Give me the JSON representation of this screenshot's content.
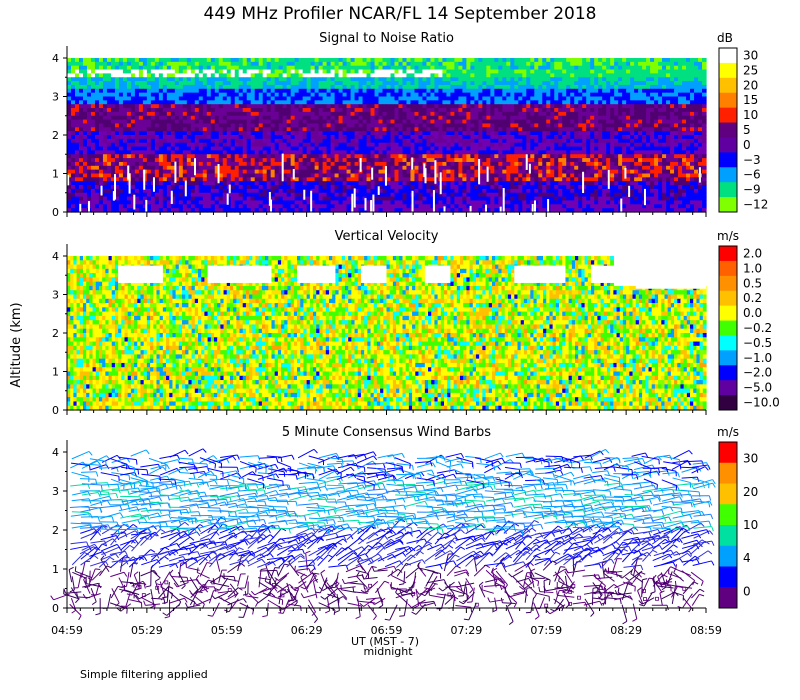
{
  "title": "449 MHz Profiler NCAR/FL 14 September 2018",
  "footnote": "Simple filtering applied",
  "y_axis_label": "Altitude (km)",
  "x_axis": {
    "label": "UT (MST - 7)",
    "sublabel": "midnight",
    "ticks": [
      "04:59",
      "05:29",
      "05:59",
      "06:29",
      "06:59",
      "07:29",
      "07:59",
      "08:29",
      "08:59"
    ]
  },
  "chart_data": [
    {
      "type": "heatmap",
      "title": "Signal to Noise Ratio",
      "ylim": [
        0,
        4
      ],
      "yticks": [
        "0",
        "1",
        "2",
        "3",
        "4"
      ],
      "x_range": [
        "04:59",
        "08:59"
      ],
      "colorbar": {
        "unit": "dB",
        "labels": [
          "30",
          "25",
          "20",
          "15",
          "10",
          "5",
          "0",
          "−3",
          "−6",
          "−9",
          "−12"
        ],
        "colors": [
          "#ffffff",
          "#ffff00",
          "#ffc000",
          "#ff8000",
          "#ff2000",
          "#600080",
          "#6000a0",
          "#0000ff",
          "#00a0ff",
          "#00e080",
          "#80ff00"
        ]
      },
      "bands": [
        {
          "alt": [
            3.4,
            3.8
          ],
          "level": "30"
        },
        {
          "alt": [
            2.7,
            3.4
          ],
          "level": "−9"
        },
        {
          "alt": [
            0.9,
            1.4
          ],
          "level": "10"
        },
        {
          "alt": [
            0.0,
            0.9
          ],
          "level": "0"
        }
      ],
      "grid": false
    },
    {
      "type": "heatmap",
      "title": "Vertical Velocity",
      "ylim": [
        0,
        4
      ],
      "yticks": [
        "0",
        "1",
        "2",
        "3",
        "4"
      ],
      "x_range": [
        "04:59",
        "08:59"
      ],
      "colorbar": {
        "unit": "m/s",
        "labels": [
          "2.0",
          "1.0",
          "0.5",
          "0.2",
          "0.0",
          "−0.2",
          "−0.5",
          "−1.0",
          "−2.0",
          "−5.0",
          "−10.0"
        ],
        "colors": [
          "#ff0000",
          "#ff6000",
          "#ff9000",
          "#ffc000",
          "#ffff00",
          "#40ff00",
          "#00ffff",
          "#00a0ff",
          "#0000ff",
          "#6000a0",
          "#300040"
        ]
      },
      "grid": false
    },
    {
      "type": "scatter",
      "title": "5 Minute Consensus Wind Barbs",
      "ylim": [
        0,
        4
      ],
      "yticks": [
        "0",
        "1",
        "2",
        "3",
        "4"
      ],
      "x_range": [
        "04:59",
        "08:59"
      ],
      "colorbar": {
        "unit": "m/s",
        "labels": [
          "30",
          "20",
          "10",
          "4",
          "0"
        ],
        "colors": [
          "#ff0000",
          "#ff9000",
          "#ffc000",
          "#40ff00",
          "#00e0a0",
          "#00a0ff",
          "#0000ff",
          "#600080"
        ]
      },
      "grid": false
    }
  ]
}
